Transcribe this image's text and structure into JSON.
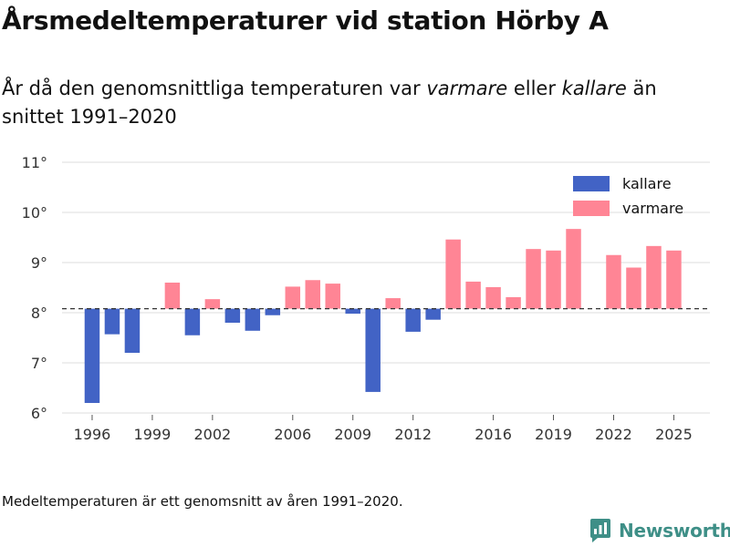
{
  "header": {
    "title": "Årsmedeltemperaturer vid station Hörby A",
    "subtitle_prefix": "År då den genomsnittliga temperaturen var ",
    "subtitle_warmer": "varmare",
    "subtitle_middle": " eller ",
    "subtitle_colder": "kallare",
    "subtitle_suffix": " än snittet 1991–2020"
  },
  "colors": {
    "colder": "#4263c5",
    "warmer": "#ff8595",
    "grid": "#dddddd",
    "baseline": "#333333"
  },
  "chart_data": {
    "type": "bar",
    "title": "Årsmedeltemperaturer vid station Hörby A",
    "baseline": 8.08,
    "baseline_label": "snittet 1991–2020",
    "ylim": [
      5.8,
      11
    ],
    "y_ticks": [
      6,
      7,
      8,
      9,
      10,
      11
    ],
    "y_tick_labels": [
      "6°",
      "7°",
      "8°",
      "9°",
      "10°",
      "11°"
    ],
    "x_range": [
      1994.5,
      2026.8
    ],
    "x_ticks": [
      1996,
      1999,
      2002,
      2006,
      2009,
      2012,
      2016,
      2019,
      2022,
      2025
    ],
    "x_tick_labels": [
      "1996",
      "1999",
      "2002",
      "2006",
      "2009",
      "2012",
      "2016",
      "2019",
      "2022",
      "2025"
    ],
    "series": [
      {
        "name": "kallare",
        "color": "#4263c5"
      },
      {
        "name": "varmare",
        "color": "#ff8595"
      }
    ],
    "legend": {
      "position": "top-right",
      "items": [
        "kallare",
        "varmare"
      ]
    },
    "points": [
      {
        "year": 1996,
        "value": 6.2
      },
      {
        "year": 1997,
        "value": 7.57
      },
      {
        "year": 1998,
        "value": 7.2
      },
      {
        "year": 2000,
        "value": 8.6
      },
      {
        "year": 2001,
        "value": 7.55
      },
      {
        "year": 2002,
        "value": 8.27
      },
      {
        "year": 2003,
        "value": 7.8
      },
      {
        "year": 2004,
        "value": 7.64
      },
      {
        "year": 2005,
        "value": 7.95
      },
      {
        "year": 2006,
        "value": 8.52
      },
      {
        "year": 2007,
        "value": 8.65
      },
      {
        "year": 2008,
        "value": 8.58
      },
      {
        "year": 2009,
        "value": 7.98
      },
      {
        "year": 2010,
        "value": 6.42
      },
      {
        "year": 2011,
        "value": 8.29
      },
      {
        "year": 2012,
        "value": 7.62
      },
      {
        "year": 2013,
        "value": 7.86
      },
      {
        "year": 2014,
        "value": 9.46
      },
      {
        "year": 2015,
        "value": 8.62
      },
      {
        "year": 2016,
        "value": 8.51
      },
      {
        "year": 2017,
        "value": 8.31
      },
      {
        "year": 2018,
        "value": 9.27
      },
      {
        "year": 2019,
        "value": 9.24
      },
      {
        "year": 2020,
        "value": 9.67
      },
      {
        "year": 2022,
        "value": 9.15
      },
      {
        "year": 2023,
        "value": 8.9
      },
      {
        "year": 2024,
        "value": 9.33
      },
      {
        "year": 2025,
        "value": 9.24
      }
    ]
  },
  "footnote": "Medeltemperaturen är ett genomsnitt av åren 1991–2020.",
  "brand": {
    "name": "Newsworthy",
    "icon": "newsworthy-logo-icon"
  }
}
